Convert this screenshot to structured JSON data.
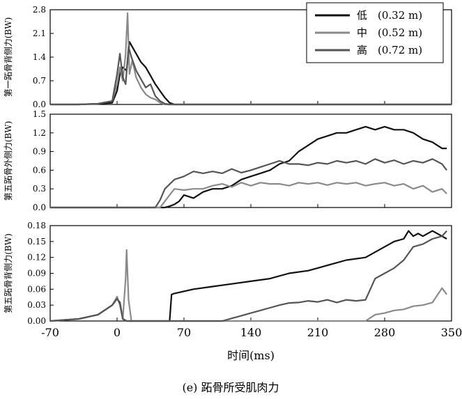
{
  "caption": "(e) 跖骨所受肌肉力",
  "legend": [
    {
      "name": "低",
      "detail": "(0.32 m)"
    },
    {
      "name": "中",
      "detail": "(0.52 m)"
    },
    {
      "name": "高",
      "detail": "(0.72 m)"
    }
  ],
  "colors": {
    "low": "#111111",
    "mid": "#8a8a8a",
    "high": "#555555"
  },
  "chart_data": [
    {
      "type": "line",
      "ylabel": "第一跖骨背侧力(BW)",
      "ylim": [
        0,
        2.8
      ],
      "yticks": [
        "0.0",
        "0.7",
        "1.4",
        "2.1",
        "2.8"
      ],
      "xlim": [
        -70,
        350
      ],
      "series": [
        {
          "name": "低 (0.32 m)",
          "color_key": "low",
          "x": [
            -70,
            -40,
            -20,
            -5,
            0,
            3,
            6,
            10,
            13,
            16,
            20,
            25,
            30,
            35,
            40,
            45,
            50,
            55,
            60,
            80,
            100,
            140,
            210,
            280,
            350
          ],
          "y": [
            0,
            0,
            0.02,
            0.05,
            0.4,
            0.9,
            1.1,
            1.0,
            1.85,
            1.7,
            1.5,
            1.25,
            1.1,
            0.85,
            0.6,
            0.4,
            0.2,
            0.05,
            0,
            0,
            0,
            0,
            0,
            0,
            0
          ]
        },
        {
          "name": "中 (0.52 m)",
          "color_key": "mid",
          "x": [
            -70,
            -40,
            -20,
            -5,
            0,
            3,
            6,
            9,
            11,
            13,
            16,
            20,
            25,
            30,
            35,
            40,
            45,
            50,
            55,
            70,
            140,
            210,
            280,
            350
          ],
          "y": [
            0,
            0,
            0.02,
            0.1,
            0.6,
            1.1,
            0.7,
            1.5,
            2.7,
            0.9,
            1.3,
            0.8,
            0.5,
            0.3,
            0.2,
            0.15,
            0.05,
            0,
            0,
            0,
            0,
            0,
            0,
            0
          ]
        },
        {
          "name": "高 (0.72 m)",
          "color_key": "high",
          "x": [
            -70,
            -40,
            -20,
            -5,
            0,
            3,
            6,
            9,
            12,
            15,
            20,
            25,
            30,
            35,
            40,
            45,
            50,
            55,
            70,
            140,
            210,
            280,
            350
          ],
          "y": [
            0,
            0,
            0.02,
            0.1,
            0.9,
            1.5,
            0.8,
            0.6,
            1.7,
            1.4,
            1.0,
            0.75,
            0.5,
            0.6,
            0.25,
            0.1,
            0.02,
            0,
            0,
            0,
            0,
            0,
            0
          ]
        }
      ]
    },
    {
      "type": "line",
      "ylabel": "第五跖骨外侧力(BW)",
      "ylim": [
        0,
        1.5
      ],
      "yticks": [
        "0.0",
        "0.3",
        "0.6",
        "0.9",
        "1.2",
        "1.5"
      ],
      "xlim": [
        -70,
        350
      ],
      "series": [
        {
          "name": "低 (0.32 m)",
          "color_key": "low",
          "x": [
            -70,
            0,
            30,
            50,
            55,
            60,
            65,
            70,
            80,
            90,
            100,
            110,
            120,
            130,
            140,
            150,
            160,
            170,
            180,
            190,
            200,
            210,
            220,
            230,
            240,
            250,
            260,
            270,
            280,
            290,
            300,
            310,
            320,
            330,
            340,
            345
          ],
          "y": [
            0,
            0,
            0,
            0,
            0.02,
            0.05,
            0.1,
            0.2,
            0.15,
            0.25,
            0.3,
            0.3,
            0.35,
            0.45,
            0.5,
            0.55,
            0.6,
            0.7,
            0.75,
            0.9,
            1.0,
            1.1,
            1.15,
            1.2,
            1.2,
            1.25,
            1.3,
            1.25,
            1.3,
            1.25,
            1.25,
            1.2,
            1.1,
            1.05,
            0.95,
            0.95
          ]
        },
        {
          "name": "中 (0.52 m)",
          "color_key": "mid",
          "x": [
            -70,
            0,
            30,
            45,
            50,
            55,
            60,
            70,
            80,
            90,
            100,
            110,
            120,
            130,
            140,
            150,
            160,
            170,
            180,
            190,
            200,
            210,
            220,
            230,
            240,
            250,
            260,
            270,
            280,
            290,
            300,
            310,
            320,
            330,
            340,
            345
          ],
          "y": [
            0,
            0,
            0,
            0,
            0.1,
            0.2,
            0.3,
            0.28,
            0.3,
            0.3,
            0.35,
            0.38,
            0.33,
            0.4,
            0.35,
            0.4,
            0.38,
            0.38,
            0.35,
            0.4,
            0.38,
            0.4,
            0.36,
            0.4,
            0.38,
            0.4,
            0.35,
            0.38,
            0.4,
            0.35,
            0.38,
            0.3,
            0.35,
            0.25,
            0.3,
            0.22
          ]
        },
        {
          "name": "高 (0.72 m)",
          "color_key": "high",
          "x": [
            -70,
            0,
            30,
            40,
            45,
            50,
            60,
            70,
            80,
            90,
            100,
            110,
            120,
            130,
            140,
            150,
            160,
            170,
            180,
            190,
            200,
            210,
            220,
            230,
            240,
            250,
            260,
            270,
            280,
            290,
            300,
            310,
            320,
            330,
            340,
            345
          ],
          "y": [
            0,
            0,
            0,
            0,
            0.12,
            0.3,
            0.45,
            0.5,
            0.58,
            0.55,
            0.58,
            0.55,
            0.62,
            0.56,
            0.6,
            0.65,
            0.7,
            0.75,
            0.7,
            0.7,
            0.68,
            0.72,
            0.7,
            0.75,
            0.72,
            0.75,
            0.7,
            0.78,
            0.72,
            0.76,
            0.7,
            0.75,
            0.72,
            0.78,
            0.7,
            0.6
          ]
        }
      ]
    },
    {
      "type": "line",
      "ylabel": "第五跖骨背侧力(BW)",
      "ylim": [
        0,
        0.18
      ],
      "yticks": [
        "0.00",
        "0.03",
        "0.06",
        "0.09",
        "0.12",
        "0.15",
        "0.18"
      ],
      "xlim": [
        -70,
        350
      ],
      "xticks": [
        "-70",
        "0",
        "70",
        "140",
        "210",
        "280",
        "350"
      ],
      "xlabel": "时间(ms)",
      "series": [
        {
          "name": "低 (0.32 m)",
          "color_key": "low",
          "x": [
            -70,
            -40,
            -20,
            -5,
            0,
            3,
            6,
            10,
            15,
            20,
            30,
            40,
            50,
            55,
            57,
            60,
            80,
            100,
            120,
            140,
            160,
            180,
            200,
            210,
            220,
            240,
            260,
            270,
            280,
            290,
            300,
            305,
            310,
            315,
            320,
            330,
            340,
            345
          ],
          "y": [
            0,
            0.004,
            0.012,
            0.03,
            0.042,
            0.035,
            0.004,
            0,
            0,
            0,
            0,
            0,
            0,
            0,
            0.05,
            0.052,
            0.06,
            0.065,
            0.07,
            0.075,
            0.08,
            0.09,
            0.095,
            0.1,
            0.105,
            0.115,
            0.12,
            0.13,
            0.14,
            0.15,
            0.155,
            0.17,
            0.16,
            0.165,
            0.16,
            0.17,
            0.16,
            0.155
          ]
        },
        {
          "name": "中 (0.52 m)",
          "color_key": "mid",
          "x": [
            -70,
            -40,
            -20,
            -5,
            0,
            3,
            6,
            9,
            10,
            12,
            15,
            20,
            40,
            100,
            200,
            260,
            270,
            280,
            290,
            300,
            310,
            320,
            330,
            340,
            345
          ],
          "y": [
            0,
            0.004,
            0.012,
            0.03,
            0.046,
            0.03,
            0.004,
            0.08,
            0.134,
            0.04,
            0,
            0,
            0,
            0,
            0,
            0,
            0.012,
            0.015,
            0.02,
            0.022,
            0.028,
            0.03,
            0.035,
            0.062,
            0.05
          ]
        },
        {
          "name": "高 (0.72 m)",
          "color_key": "high",
          "x": [
            -70,
            -40,
            -20,
            -5,
            0,
            3,
            6,
            10,
            15,
            20,
            40,
            100,
            110,
            120,
            130,
            140,
            150,
            160,
            170,
            180,
            190,
            200,
            210,
            220,
            230,
            240,
            250,
            260,
            270,
            280,
            290,
            300,
            310,
            320,
            330,
            340,
            345
          ],
          "y": [
            0,
            0.004,
            0.012,
            0.03,
            0.042,
            0.033,
            0.004,
            0,
            0,
            0,
            0,
            0,
            0,
            0.005,
            0.01,
            0.015,
            0.02,
            0.025,
            0.03,
            0.034,
            0.035,
            0.038,
            0.036,
            0.04,
            0.035,
            0.04,
            0.038,
            0.04,
            0.08,
            0.09,
            0.1,
            0.115,
            0.14,
            0.145,
            0.155,
            0.16,
            0.17
          ]
        }
      ]
    }
  ]
}
